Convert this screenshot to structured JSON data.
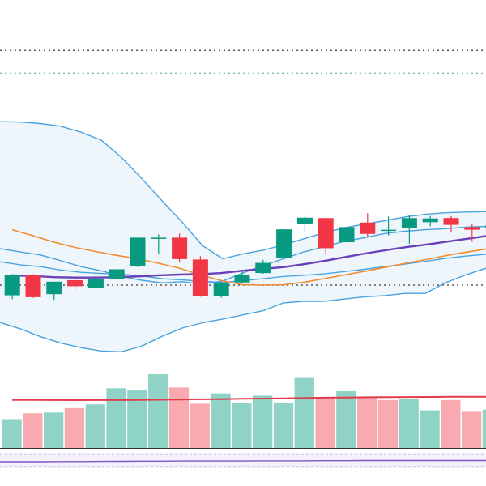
{
  "colors": {
    "background": "#ffffff",
    "up": "#089981",
    "down": "#f23645",
    "up_volume": "#8fd3c6",
    "down_volume": "#f9a9b0",
    "bollinger_band": "#4aa3df",
    "bollinger_fill": "#eef6fb",
    "ma_fast": "#6b3fb8",
    "ma_slow": "#f28b30",
    "volume_ma": "#e23b4a",
    "price_line_dark": "#555555",
    "price_line_teal": "#3ea89a",
    "oscillator": "#7e57c2"
  },
  "chart_data": {
    "type": "candlestick",
    "title": "",
    "xlabel": "",
    "ylabel": "",
    "grid": false,
    "ylim": [
      0,
      100
    ],
    "volume_ylim": [
      0,
      100
    ],
    "oscillator_ylim": [
      0,
      100
    ],
    "horizontal_lines": [
      {
        "style": "dotted",
        "color": "price_line_dark",
        "value": 86.6
      },
      {
        "style": "dotted",
        "color": "price_line_teal",
        "value": 80.6
      },
      {
        "style": "dotted",
        "color": "price_line_dark",
        "value": 24.3
      }
    ],
    "candles": [
      {
        "open": 21.6,
        "high": 27.2,
        "low": 20.6,
        "close": 27.0
      },
      {
        "open": 27.0,
        "high": 27.2,
        "low": 20.9,
        "close": 21.1
      },
      {
        "open": 21.9,
        "high": 25.2,
        "low": 20.4,
        "close": 25.2
      },
      {
        "open": 25.6,
        "high": 26.7,
        "low": 23.1,
        "close": 24.0
      },
      {
        "open": 23.6,
        "high": 27.0,
        "low": 23.6,
        "close": 25.9
      },
      {
        "open": 25.9,
        "high": 28.5,
        "low": 25.7,
        "close": 28.5
      },
      {
        "open": 29.3,
        "high": 36.9,
        "low": 29.1,
        "close": 36.9
      },
      {
        "open": 36.7,
        "high": 37.8,
        "low": 32.6,
        "close": 36.9
      },
      {
        "open": 36.9,
        "high": 38.0,
        "low": 30.3,
        "close": 31.2
      },
      {
        "open": 31.1,
        "high": 32.0,
        "low": 21.2,
        "close": 21.5
      },
      {
        "open": 21.4,
        "high": 25.1,
        "low": 20.9,
        "close": 24.9
      },
      {
        "open": 25.0,
        "high": 27.8,
        "low": 24.8,
        "close": 27.0
      },
      {
        "open": 27.5,
        "high": 31.0,
        "low": 27.3,
        "close": 30.2
      },
      {
        "open": 31.6,
        "high": 39.1,
        "low": 31.2,
        "close": 39.1
      },
      {
        "open": 40.6,
        "high": 42.7,
        "low": 38.7,
        "close": 42.2
      },
      {
        "open": 42.1,
        "high": 42.2,
        "low": 32.4,
        "close": 34.1
      },
      {
        "open": 35.7,
        "high": 39.7,
        "low": 35.7,
        "close": 39.7
      },
      {
        "open": 40.9,
        "high": 43.4,
        "low": 37.2,
        "close": 37.9
      },
      {
        "open": 39.0,
        "high": 42.5,
        "low": 37.5,
        "close": 39.0
      },
      {
        "open": 39.5,
        "high": 42.8,
        "low": 35.3,
        "close": 42.1
      },
      {
        "open": 41.0,
        "high": 42.6,
        "low": 39.9,
        "close": 42.0
      },
      {
        "open": 42.1,
        "high": 42.6,
        "low": 38.4,
        "close": 40.3
      },
      {
        "open": 39.7,
        "high": 40.6,
        "low": 35.8,
        "close": 39.0
      },
      {
        "open": 39.4,
        "high": 40.1,
        "low": 37.6,
        "close": 40.1
      }
    ],
    "volume": [
      {
        "value": 39,
        "direction": "up"
      },
      {
        "value": 47,
        "direction": "down"
      },
      {
        "value": 48,
        "direction": "up"
      },
      {
        "value": 54,
        "direction": "down"
      },
      {
        "value": 59,
        "direction": "up"
      },
      {
        "value": 81,
        "direction": "up"
      },
      {
        "value": 78,
        "direction": "up"
      },
      {
        "value": 100,
        "direction": "up"
      },
      {
        "value": 82,
        "direction": "down"
      },
      {
        "value": 60,
        "direction": "down"
      },
      {
        "value": 74,
        "direction": "up"
      },
      {
        "value": 61,
        "direction": "up"
      },
      {
        "value": 71,
        "direction": "up"
      },
      {
        "value": 61,
        "direction": "up"
      },
      {
        "value": 95,
        "direction": "up"
      },
      {
        "value": 69,
        "direction": "down"
      },
      {
        "value": 77,
        "direction": "up"
      },
      {
        "value": 69,
        "direction": "down"
      },
      {
        "value": 65,
        "direction": "down"
      },
      {
        "value": 66,
        "direction": "up"
      },
      {
        "value": 51,
        "direction": "up"
      },
      {
        "value": 65,
        "direction": "down"
      },
      {
        "value": 49,
        "direction": "down"
      },
      {
        "value": 52,
        "direction": "up"
      }
    ],
    "volume_ma": [
      65.2,
      65.1,
      64.9,
      64.8,
      64.9,
      65.0,
      65.1,
      65.4,
      65.7,
      66.0,
      66.3,
      66.7,
      67.0,
      67.4,
      67.8,
      68.2,
      68.5,
      68.8,
      69.0,
      69.1,
      69.2,
      69.4,
      69.4,
      69.4
    ],
    "bollinger": {
      "upper": [
        67.7,
        67.6,
        67.2,
        66.5,
        64.9,
        62.8,
        58.2,
        52.6,
        46.7,
        41.0,
        34.8,
        31.3,
        32.6,
        33.6,
        35.0,
        36.6,
        38.2,
        39.5,
        40.5,
        41.4,
        42.4,
        43.1,
        43.5,
        43.7,
        43.8
      ],
      "middle": [
        30.5,
        29.7,
        29.2,
        28.3,
        27.7,
        27.4,
        27.2,
        26.7,
        26.0,
        25.7,
        25.3,
        25.0,
        25.5,
        26.0,
        26.6,
        26.9,
        27.3,
        27.9,
        28.5,
        29.2,
        29.9,
        30.6,
        31.4,
        32.0,
        32.5
      ],
      "lower": [
        14.4,
        12.7,
        10.6,
        8.9,
        7.7,
        6.8,
        6.6,
        8.1,
        10.7,
        12.9,
        14.3,
        15.3,
        16.4,
        17.5,
        19.6,
        20.0,
        20.0,
        20.6,
        21.2,
        21.5,
        22.1,
        22.1,
        24.9,
        27.0,
        28.8
      ],
      "basis": [
        34.0,
        33.1,
        32.3,
        30.8,
        29.2,
        28.1,
        26.6,
        25.6,
        24.9,
        25.2,
        24.6,
        25.4,
        27.5,
        29.5,
        31.3,
        33.1,
        34.5,
        35.9,
        36.9,
        38.0,
        38.6,
        39.0,
        39.3,
        39.7,
        39.9
      ]
    },
    "ma_fast": [
      26.9,
      26.7,
      26.4,
      26.3,
      26.3,
      26.4,
      26.6,
      26.9,
      27.1,
      27.2,
      27.5,
      28.1,
      28.6,
      29.1,
      29.9,
      30.8,
      31.8,
      32.8,
      33.7,
      34.5,
      35.2,
      36.0,
      36.8,
      37.6
    ],
    "ma_slow": [
      39.0,
      37.4,
      35.7,
      34.3,
      33.2,
      32.2,
      31.3,
      30.1,
      28.8,
      27.0,
      25.5,
      24.4,
      24.3,
      24.4,
      25.1,
      26.1,
      27.1,
      28.1,
      29.2,
      30.3,
      31.3,
      32.4,
      33.3,
      34.2
    ],
    "oscillator": [
      42,
      42,
      42,
      43,
      43,
      44,
      45,
      46,
      46,
      47,
      47,
      47,
      47,
      48,
      48,
      48,
      49,
      49,
      50,
      50,
      50,
      50,
      50,
      50,
      50
    ]
  }
}
